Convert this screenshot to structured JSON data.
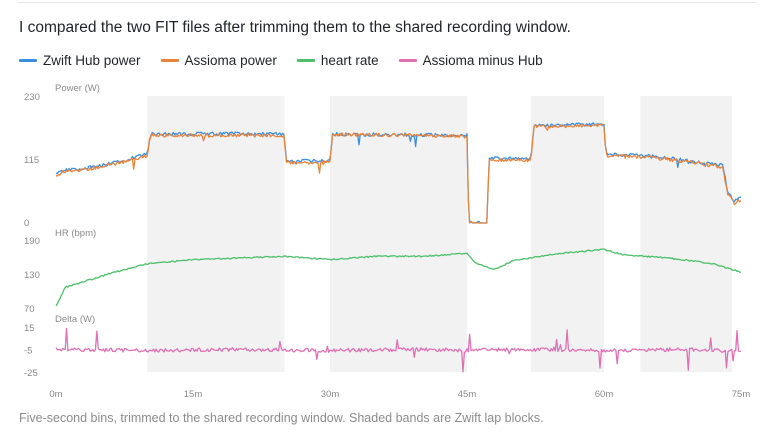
{
  "intro_text": "I compared the two FIT files after trimming them to the shared recording window.",
  "caption": "Five-second bins, trimmed to the shared recording window. Shaded bands are Zwift lap blocks.",
  "colors": {
    "hub": "#3b8fe0",
    "assioma": "#e8843c",
    "hr": "#4cc06a",
    "delta": "#e070b4",
    "band": "#f2f2f2",
    "label": "#8a8a8a"
  },
  "chart_data": {
    "type": "line",
    "x_unit": "minutes",
    "x_ticks": [
      0,
      15,
      30,
      45,
      60,
      75
    ],
    "x_tick_labels": [
      "0m",
      "15m",
      "30m",
      "45m",
      "60m",
      "75m"
    ],
    "xlim": [
      0,
      75
    ],
    "lap_bands": [
      [
        10,
        25
      ],
      [
        30,
        45
      ],
      [
        52,
        60
      ],
      [
        64,
        74
      ]
    ],
    "legend": [
      {
        "name": "Zwift Hub power",
        "color": "#3b8fe0"
      },
      {
        "name": "Assioma power",
        "color": "#e8843c"
      },
      {
        "name": "heart rate",
        "color": "#4cc06a"
      },
      {
        "name": "Assioma minus Hub",
        "color": "#e070b4"
      }
    ],
    "panels": [
      {
        "id": "power",
        "title": "Power (W)",
        "ylim": [
          0,
          230
        ],
        "y_ticks": [
          0,
          115,
          230
        ],
        "series": [
          {
            "name": "Zwift Hub power",
            "color": "#3b8fe0",
            "points": [
              [
                0,
                90
              ],
              [
                1,
                96
              ],
              [
                4,
                102
              ],
              [
                7,
                112
              ],
              [
                10,
                126
              ],
              [
                10.3,
                162
              ],
              [
                17,
                163
              ],
              [
                25,
                162
              ],
              [
                25.2,
                113
              ],
              [
                29.6,
                113
              ],
              [
                30,
                116
              ],
              [
                30.3,
                162
              ],
              [
                45,
                160
              ],
              [
                45.2,
                0
              ],
              [
                47.2,
                0
              ],
              [
                47.4,
                118
              ],
              [
                52,
                118
              ],
              [
                52.3,
                178
              ],
              [
                60,
                180
              ],
              [
                60.2,
                126
              ],
              [
                65,
                122
              ],
              [
                70,
                112
              ],
              [
                73,
                105
              ],
              [
                73.5,
                60
              ],
              [
                74.2,
                40
              ],
              [
                75,
                45
              ]
            ]
          },
          {
            "name": "Assioma power",
            "color": "#e8843c",
            "points": [
              [
                0,
                88
              ],
              [
                1,
                94
              ],
              [
                4,
                100
              ],
              [
                7,
                110
              ],
              [
                10,
                123
              ],
              [
                10.3,
                160
              ],
              [
                17,
                160
              ],
              [
                25,
                160
              ],
              [
                25.2,
                110
              ],
              [
                29.6,
                110
              ],
              [
                30,
                113
              ],
              [
                30.3,
                162
              ],
              [
                45,
                158
              ],
              [
                45.2,
                0
              ],
              [
                47.2,
                0
              ],
              [
                47.4,
                115
              ],
              [
                52,
                115
              ],
              [
                52.3,
                176
              ],
              [
                60,
                178
              ],
              [
                60.2,
                123
              ],
              [
                65,
                120
              ],
              [
                70,
                110
              ],
              [
                73,
                102
              ],
              [
                73.5,
                55
              ],
              [
                74.2,
                38
              ],
              [
                75,
                42
              ]
            ]
          }
        ]
      },
      {
        "id": "hr",
        "title": "HR (bpm)",
        "ylim": [
          70,
          190
        ],
        "y_ticks": [
          70,
          130,
          190
        ],
        "series": [
          {
            "name": "heart rate",
            "color": "#4cc06a",
            "points": [
              [
                0,
                75
              ],
              [
                1,
                108
              ],
              [
                3,
                118
              ],
              [
                6,
                133
              ],
              [
                10,
                150
              ],
              [
                15,
                157
              ],
              [
                25,
                163
              ],
              [
                30,
                157
              ],
              [
                35,
                163
              ],
              [
                40,
                163
              ],
              [
                45,
                168
              ],
              [
                46,
                150
              ],
              [
                48,
                140
              ],
              [
                50,
                155
              ],
              [
                55,
                168
              ],
              [
                60,
                175
              ],
              [
                62,
                166
              ],
              [
                67,
                160
              ],
              [
                72,
                150
              ],
              [
                75,
                135
              ]
            ]
          }
        ]
      },
      {
        "id": "delta",
        "title": "Delta (W)",
        "ylim": [
          -25,
          15
        ],
        "y_ticks": [
          -25,
          -5,
          15
        ],
        "series": [
          {
            "name": "Assioma minus Hub",
            "color": "#e070b4",
            "points": [
              [
                0,
                -4
              ],
              [
                10,
                -5
              ],
              [
                20,
                -4
              ],
              [
                30,
                -5
              ],
              [
                40,
                -4
              ],
              [
                45,
                -5
              ],
              [
                50,
                -4
              ],
              [
                60,
                -5
              ],
              [
                70,
                -4
              ],
              [
                75,
                -6
              ]
            ]
          }
        ]
      }
    ]
  }
}
